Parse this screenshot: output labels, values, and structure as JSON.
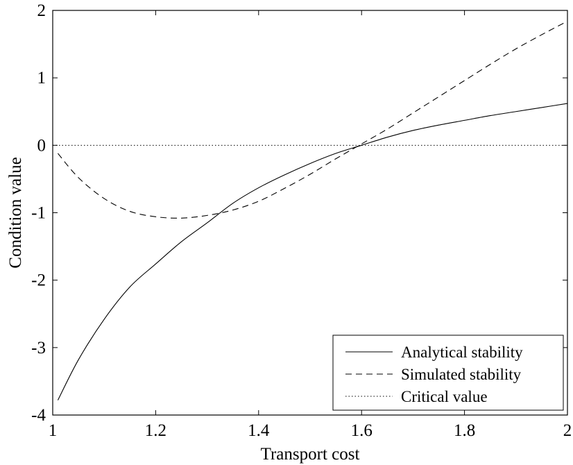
{
  "chart_data": {
    "type": "line",
    "xlabel": "Transport cost",
    "ylabel": "Condition value",
    "xlim": [
      1,
      2
    ],
    "ylim": [
      -4,
      2
    ],
    "xticks": [
      1,
      1.2,
      1.4,
      1.6,
      1.8,
      2
    ],
    "yticks": [
      -4,
      -3,
      -2,
      -1,
      0,
      1,
      2
    ],
    "xtick_labels": [
      "1",
      "1.2",
      "1.4",
      "1.6",
      "1.8",
      "2"
    ],
    "ytick_labels": [
      "-4",
      "-3",
      "-2",
      "-1",
      "0",
      "1",
      "2"
    ],
    "grid": false,
    "legend_position": "bottom-right",
    "series": [
      {
        "name": "Analytical stability",
        "style": "solid",
        "color": "#000000",
        "x": [
          1.01,
          1.05,
          1.1,
          1.15,
          1.2,
          1.25,
          1.3,
          1.35,
          1.4,
          1.45,
          1.5,
          1.55,
          1.6,
          1.65,
          1.7,
          1.75,
          1.8,
          1.85,
          1.9,
          1.95,
          2.0
        ],
        "y": [
          -3.78,
          -3.18,
          -2.58,
          -2.1,
          -1.76,
          -1.43,
          -1.15,
          -0.86,
          -0.63,
          -0.44,
          -0.27,
          -0.12,
          0.0,
          0.12,
          0.22,
          0.3,
          0.37,
          0.44,
          0.5,
          0.56,
          0.62
        ]
      },
      {
        "name": "Simulated stability",
        "style": "dashed",
        "color": "#000000",
        "x": [
          1.01,
          1.05,
          1.1,
          1.15,
          1.2,
          1.25,
          1.3,
          1.35,
          1.4,
          1.45,
          1.5,
          1.55,
          1.6,
          1.65,
          1.7,
          1.75,
          1.8,
          1.85,
          1.9,
          1.95,
          2.0
        ],
        "y": [
          -0.12,
          -0.48,
          -0.79,
          -0.98,
          -1.06,
          -1.08,
          -1.04,
          -0.96,
          -0.83,
          -0.64,
          -0.43,
          -0.2,
          0.02,
          0.24,
          0.48,
          0.72,
          0.96,
          1.2,
          1.43,
          1.64,
          1.84
        ]
      },
      {
        "name": "Critical value",
        "style": "dotted",
        "color": "#000000",
        "x": [
          1.0,
          2.0
        ],
        "y": [
          0.0,
          0.0
        ]
      }
    ]
  }
}
